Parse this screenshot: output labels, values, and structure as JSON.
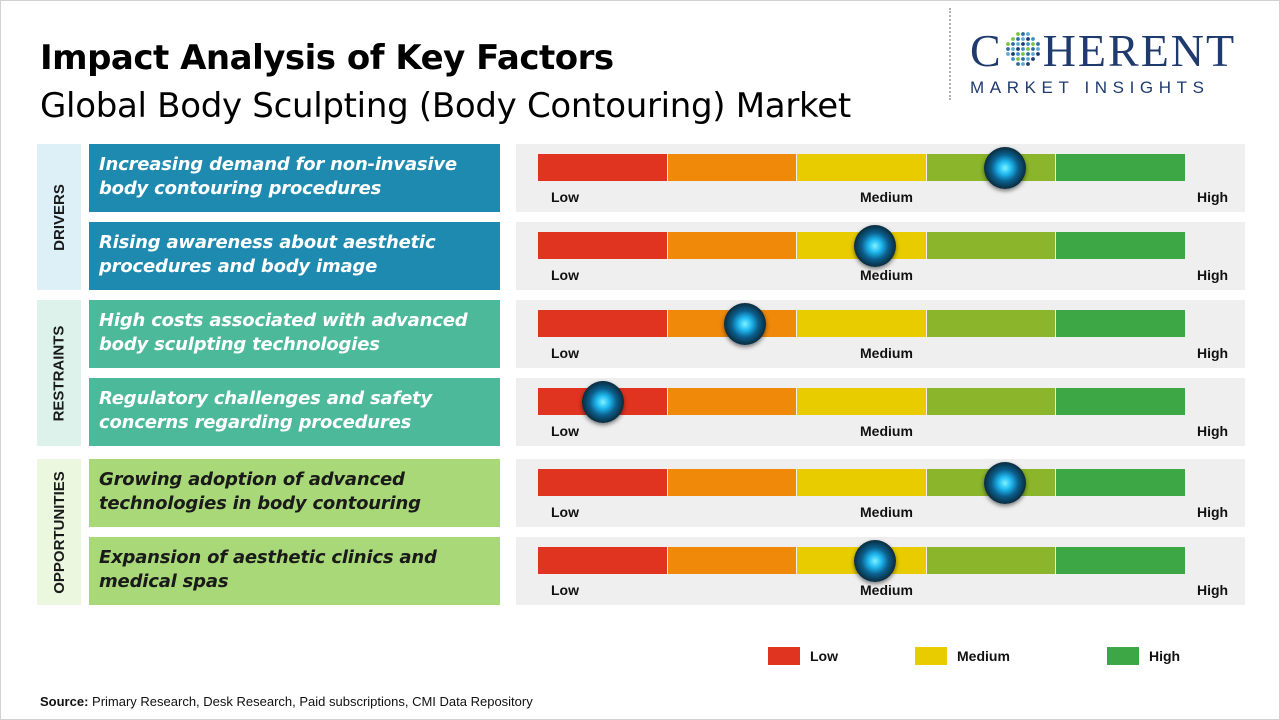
{
  "header": {
    "title": "Impact Analysis of Key Factors",
    "subtitle": "Global Body Sculpting (Body Contouring) Market"
  },
  "logo": {
    "letter_c": "C",
    "rest": "HERENT",
    "tagline": "MARKET INSIGHTS",
    "color": "#1f3b6e"
  },
  "scale": {
    "low": "Low",
    "medium": "Medium",
    "high": "High"
  },
  "chart_data": {
    "type": "impact-gauge",
    "scale_range": [
      0,
      5
    ],
    "segment_colors": [
      "#e03420",
      "#f0880a",
      "#e8cc00",
      "#8bb52a",
      "#3da645"
    ],
    "categories": [
      {
        "name": "DRIVERS",
        "color": "#1f8aaf",
        "bg": "#ddf0f8"
      },
      {
        "name": "RESTRAINTS",
        "color": "#4db99b",
        "bg": "#dcf2ea"
      },
      {
        "name": "OPPORTUNITIES",
        "color": "#a8d878",
        "bg": "#ecf7e0"
      }
    ],
    "factors": [
      {
        "category": 0,
        "text": "Increasing demand for non-invasive body contouring procedures",
        "impact": 3.6
      },
      {
        "category": 0,
        "text": "Rising awareness about aesthetic procedures and body image",
        "impact": 2.6
      },
      {
        "category": 1,
        "text": "High costs associated with advanced body sculpting technologies",
        "impact": 1.6
      },
      {
        "category": 1,
        "text": "Regulatory challenges and safety concerns regarding procedures",
        "impact": 0.5
      },
      {
        "category": 2,
        "text": "Growing adoption of advanced technologies in body contouring",
        "impact": 3.6
      },
      {
        "category": 2,
        "text": "Expansion of aesthetic clinics and medical spas",
        "impact": 2.6
      }
    ],
    "legend": [
      {
        "label": "Low",
        "color": "#e03420"
      },
      {
        "label": "Medium",
        "color": "#e8cc00"
      },
      {
        "label": "High",
        "color": "#3da645"
      }
    ]
  },
  "source": {
    "label": "Source:",
    "text": " Primary Research, Desk Research, Paid subscriptions, CMI Data Repository"
  }
}
